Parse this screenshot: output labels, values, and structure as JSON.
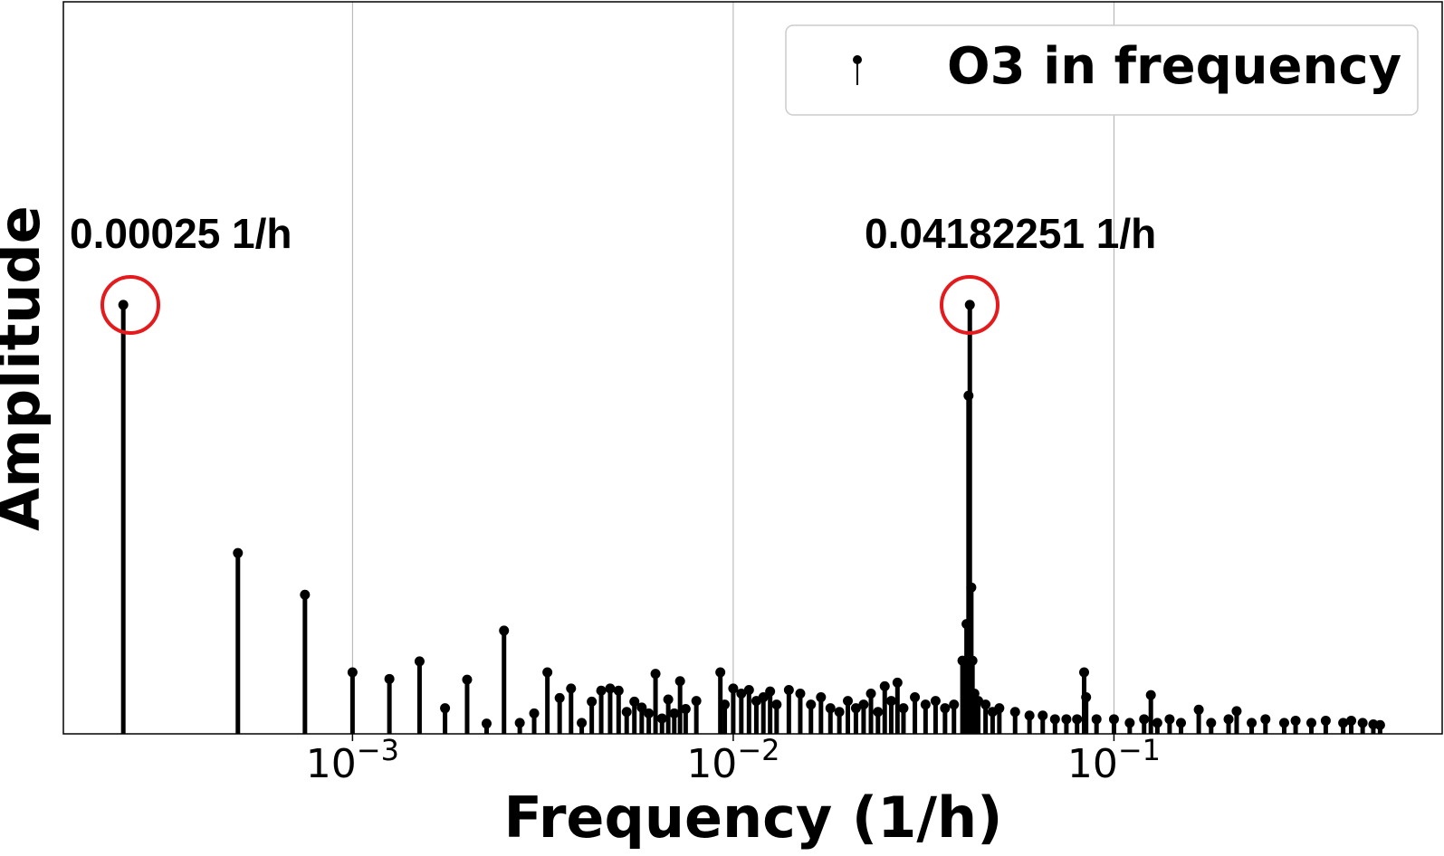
{
  "chart_data": {
    "type": "stem",
    "x_label": "Frequency (1/h)",
    "y_label": "Amplitude",
    "xscale": "log",
    "grid": true,
    "legend": "upper right",
    "annotations": [
      "0.00025 1/h",
      "0.04182251 1/h"
    ],
    "xlim": [
      0.000174,
      0.728
    ],
    "ylim": [
      0,
      1
    ],
    "xticks": [
      {
        "value": 0.001,
        "label": "10−3"
      },
      {
        "value": 0.01,
        "label": "10−2"
      },
      {
        "value": 0.1,
        "label": "10−1"
      }
    ],
    "series": [
      {
        "name": "O3 in frequency",
        "color": "#000000",
        "x": [
          0.00025,
          0.0005,
          0.00075,
          0.001,
          0.00125,
          0.0015,
          0.00175,
          0.002,
          0.00225,
          0.0025,
          0.00275,
          0.003,
          0.00325,
          0.0035,
          0.00375,
          0.004,
          0.00425,
          0.0045,
          0.00475,
          0.005,
          0.00525,
          0.0055,
          0.00575,
          0.006,
          0.00625,
          0.0065,
          0.00675,
          0.007,
          0.00725,
          0.0075,
          0.008,
          0.00925,
          0.0095,
          0.01,
          0.0105,
          0.011,
          0.0115,
          0.012,
          0.0125,
          0.013,
          0.014,
          0.015,
          0.016,
          0.017,
          0.018,
          0.019,
          0.02,
          0.021,
          0.022,
          0.023,
          0.024,
          0.025,
          0.026,
          0.027,
          0.028,
          0.03,
          0.032,
          0.034,
          0.036,
          0.038,
          0.04,
          0.041,
          0.0415,
          0.04182251,
          0.0422,
          0.0425,
          0.043,
          0.044,
          0.046,
          0.048,
          0.05,
          0.055,
          0.06,
          0.065,
          0.07,
          0.075,
          0.08,
          0.0835,
          0.0845,
          0.09,
          0.1,
          0.11,
          0.12,
          0.125,
          0.13,
          0.14,
          0.15,
          0.167,
          0.18,
          0.2,
          0.21,
          0.23,
          0.25,
          0.28,
          0.3,
          0.33,
          0.36,
          0.4,
          0.42,
          0.45,
          0.48,
          0.5
        ],
        "values": [
          0.586,
          0.247,
          0.19,
          0.084,
          0.075,
          0.099,
          0.035,
          0.074,
          0.014,
          0.141,
          0.015,
          0.028,
          0.084,
          0.049,
          0.062,
          0.015,
          0.044,
          0.059,
          0.062,
          0.059,
          0.03,
          0.044,
          0.036,
          0.028,
          0.082,
          0.021,
          0.047,
          0.028,
          0.072,
          0.034,
          0.045,
          0.084,
          0.04,
          0.062,
          0.055,
          0.06,
          0.045,
          0.05,
          0.058,
          0.04,
          0.06,
          0.055,
          0.04,
          0.05,
          0.035,
          0.03,
          0.045,
          0.035,
          0.04,
          0.055,
          0.03,
          0.065,
          0.045,
          0.07,
          0.035,
          0.05,
          0.04,
          0.045,
          0.035,
          0.04,
          0.1,
          0.15,
          0.462,
          0.586,
          0.2,
          0.1,
          0.055,
          0.045,
          0.04,
          0.03,
          0.035,
          0.03,
          0.025,
          0.025,
          0.02,
          0.02,
          0.02,
          0.084,
          0.05,
          0.02,
          0.02,
          0.015,
          0.02,
          0.053,
          0.015,
          0.02,
          0.015,
          0.033,
          0.015,
          0.02,
          0.031,
          0.015,
          0.02,
          0.015,
          0.018,
          0.015,
          0.018,
          0.015,
          0.018,
          0.015,
          0.013,
          0.012
        ]
      }
    ]
  }
}
